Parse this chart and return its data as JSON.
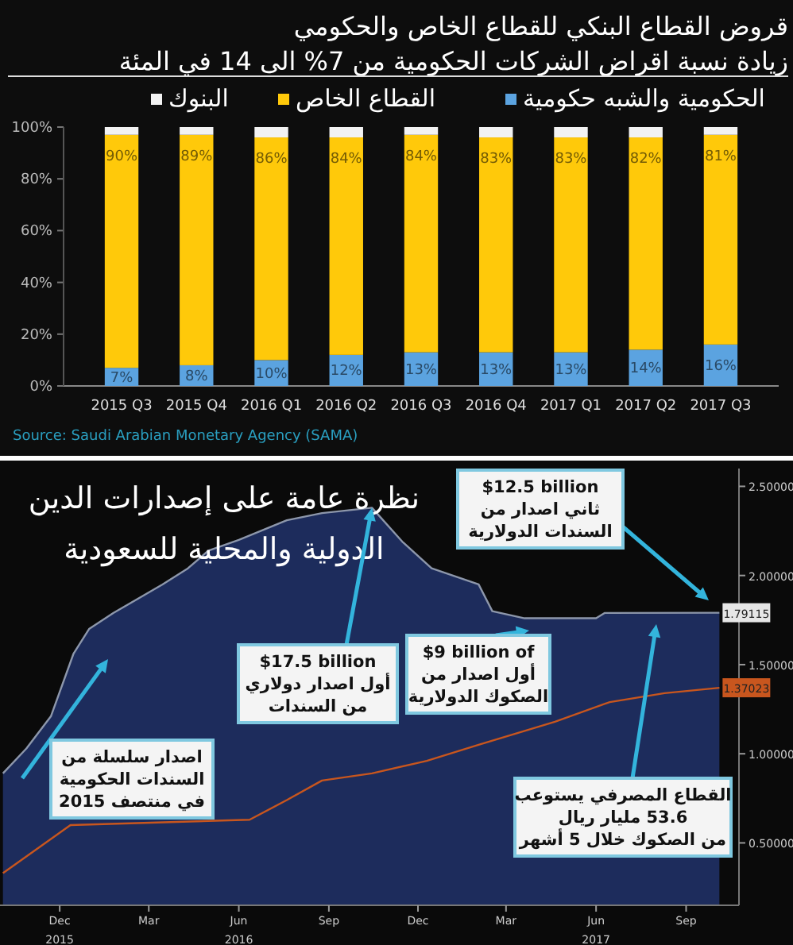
{
  "chart_data": [
    {
      "type": "bar",
      "title": "قروض القطاع البنكي للقطاع الخاص والحكومي",
      "subtitle": "زيادة نسبة اقراض الشركات الحكومية من 7% الى 14 في المئة",
      "stacked": true,
      "legend": "top",
      "categories": [
        "2015 Q3",
        "2015 Q4",
        "2016 Q1",
        "2016 Q2",
        "2016 Q3",
        "2016 Q4",
        "2017 Q1",
        "2017 Q2",
        "2017 Q3"
      ],
      "series": [
        {
          "name": "الحكومية والشبه حكومية",
          "color": "#5ba3e0",
          "values": [
            7,
            8,
            10,
            12,
            13,
            13,
            13,
            14,
            16
          ],
          "value_labels": [
            "7%",
            "8%",
            "10%",
            "12%",
            "13%",
            "13%",
            "13%",
            "14%",
            "16%"
          ]
        },
        {
          "name": "القطاع الخاص",
          "color": "#ffc90a",
          "values": [
            90,
            89,
            86,
            84,
            84,
            83,
            83,
            82,
            81
          ],
          "value_labels": [
            "90%",
            "89%",
            "86%",
            "84%",
            "84%",
            "83%",
            "83%",
            "82%",
            "81%"
          ]
        },
        {
          "name": "البنوك",
          "color": "#f2f2f2",
          "values": [
            3,
            3,
            4,
            4,
            3,
            4,
            4,
            4,
            3
          ]
        }
      ],
      "ylim": [
        0,
        100
      ],
      "yticks": [
        {
          "value": 0,
          "label": "0%"
        },
        {
          "value": 20,
          "label": "20%"
        },
        {
          "value": 40,
          "label": "40%"
        },
        {
          "value": 60,
          "label": "60%"
        },
        {
          "value": 80,
          "label": "80%"
        },
        {
          "value": 100,
          "label": "100%"
        }
      ],
      "annotations": [
        "Source: Saudi Arabian Monetary Agency (SAMA)"
      ]
    },
    {
      "type": "area",
      "title": "نظرة عامة على إصدارات الدين\nالدولية والمحلية للسعودية",
      "series": [
        {
          "type": "area",
          "color": "#1d2c5c",
          "x": [
            "2015-10-04",
            "2015-10-28",
            "2015-11-22",
            "2015-12-15",
            "2015-12-31",
            "2016-01-25",
            "2016-03-15",
            "2016-04-10",
            "2016-05-01",
            "2016-06-01",
            "2016-07-20",
            "2016-08-25",
            "2016-10-15",
            "2016-11-15",
            "2016-12-15",
            "2017-02-01",
            "2017-02-15",
            "2017-03-20",
            "2017-06-01",
            "2017-06-10",
            "2017-10-05"
          ],
          "values": [
            0.89,
            1.03,
            1.21,
            1.56,
            1.7,
            1.79,
            1.95,
            2.04,
            2.14,
            2.2,
            2.31,
            2.35,
            2.38,
            2.19,
            2.04,
            1.95,
            1.8,
            1.76,
            1.76,
            1.79,
            1.79115
          ],
          "value_labels": [
            null,
            null,
            null,
            null,
            null,
            null,
            null,
            null,
            null,
            null,
            null,
            null,
            null,
            null,
            null,
            null,
            null,
            null,
            null,
            null,
            "1.79115"
          ]
        },
        {
          "type": "line",
          "color": "#c8561e",
          "x": [
            "2015-10-04",
            "2015-12-12",
            "2016-06-12",
            "2016-07-20",
            "2016-08-25",
            "2016-10-15",
            "2016-12-10",
            "2017-02-01",
            "2017-04-20",
            "2017-06-15",
            "2017-08-10",
            "2017-10-05"
          ],
          "values": [
            0.33,
            0.6,
            0.63,
            0.74,
            0.85,
            0.89,
            0.96,
            1.05,
            1.18,
            1.29,
            1.34,
            1.37023
          ],
          "value_labels": [
            null,
            null,
            null,
            null,
            null,
            null,
            null,
            null,
            null,
            null,
            null,
            "1.37023"
          ]
        }
      ],
      "xlim": [
        "2015-10-01",
        "2017-10-25"
      ],
      "xticks": [
        {
          "value": "2015-12-01",
          "label": "Dec\n2015"
        },
        {
          "value": "2016-03-01",
          "label": "Mar"
        },
        {
          "value": "2016-06-01",
          "label": "Jun\n2016"
        },
        {
          "value": "2016-09-01",
          "label": "Sep"
        },
        {
          "value": "2016-12-01",
          "label": "Dec"
        },
        {
          "value": "2017-03-01",
          "label": "Mar"
        },
        {
          "value": "2017-06-01",
          "label": "Jun\n2017"
        },
        {
          "value": "2017-09-01",
          "label": "Sep"
        }
      ],
      "ylim": [
        0.15,
        2.6
      ],
      "yticks": [
        {
          "value": 0.5,
          "label": "0.50000"
        },
        {
          "value": 1,
          "label": "1.00000"
        },
        {
          "value": 1.5,
          "label": "1.50000"
        },
        {
          "value": 2,
          "label": "2.00000"
        },
        {
          "value": 2.5,
          "label": "2.50000"
        }
      ],
      "annotations": [
        "$12.5 billion\nثاني اصدار من\nالسندات الدولارية",
        {
          "text": "$17.5 billion\nأول اصدار دولاري\nمن السندات",
          "x": "2016-10-15",
          "y": 2.38
        },
        "$9 billion of\nأول اصدار من\nالصكوك الدولارية",
        "اصدار سلسلة من\nالسندات الحكومية\nفي منتصف 2015",
        "القطاع المصرفي يستوعب\n53.6 مليار ريال\nمن الصكوك خلال 5 أشهر"
      ]
    }
  ]
}
